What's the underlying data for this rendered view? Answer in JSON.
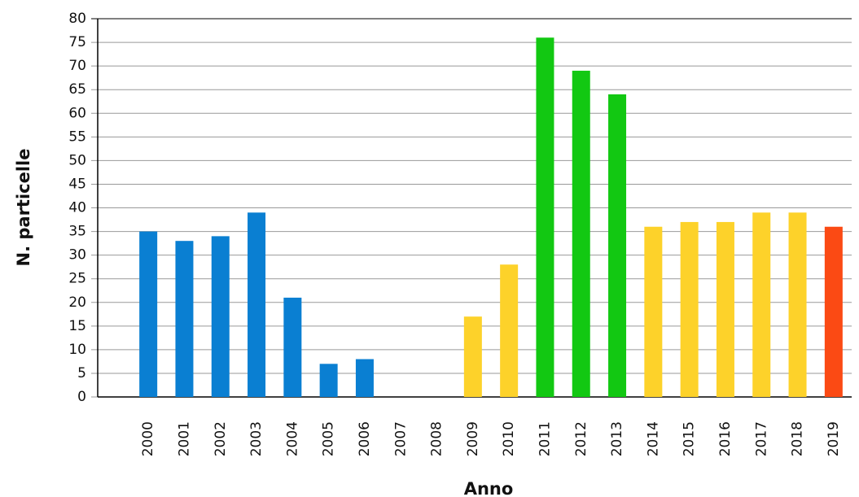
{
  "chart_data": {
    "type": "bar",
    "x_label": "Anno",
    "y_label": "N. particelle",
    "categories": [
      "2000",
      "2001",
      "2002",
      "2003",
      "2004",
      "2005",
      "2006",
      "2007",
      "2008",
      "2009",
      "2010",
      "2011",
      "2012",
      "2013",
      "2014",
      "2015",
      "2016",
      "2017",
      "2018",
      "2019"
    ],
    "values": [
      35,
      33,
      34,
      39,
      21,
      7,
      8,
      0,
      0,
      17,
      28,
      76,
      69,
      64,
      36,
      37,
      37,
      39,
      39,
      36
    ],
    "colors": [
      "#0a7fd2",
      "#0a7fd2",
      "#0a7fd2",
      "#0a7fd2",
      "#0a7fd2",
      "#0a7fd2",
      "#0a7fd2",
      "#0a7fd2",
      "#0a7fd2",
      "#fdd22a",
      "#fdd22a",
      "#12c812",
      "#12c812",
      "#12c812",
      "#fdd22a",
      "#fdd22a",
      "#fdd22a",
      "#fdd22a",
      "#fdd22a",
      "#fb4a14"
    ],
    "ylim": [
      0,
      80
    ],
    "yticks": [
      0,
      5,
      10,
      15,
      20,
      25,
      30,
      35,
      40,
      45,
      50,
      55,
      60,
      65,
      70,
      75,
      80
    ],
    "grid": true
  }
}
